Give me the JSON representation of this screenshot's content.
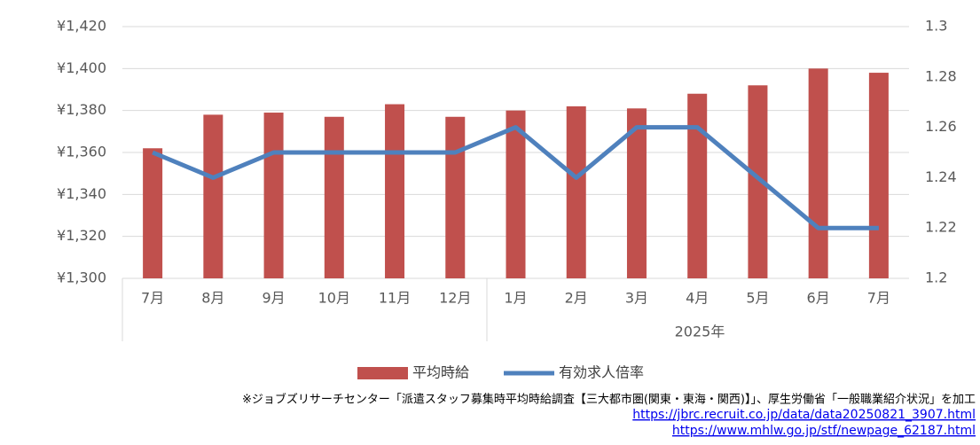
{
  "chart_data": {
    "type": "combo",
    "categories": [
      "7月",
      "8月",
      "9月",
      "10月",
      "11月",
      "12月",
      "1月",
      "2月",
      "3月",
      "4月",
      "5月",
      "6月",
      "7月"
    ],
    "group_label": "2025年",
    "series": [
      {
        "name": "平均時給",
        "type": "bar",
        "color": "#c0504d",
        "values": [
          1362,
          1378,
          1379,
          1377,
          1383,
          1377,
          1380,
          1382,
          1381,
          1388,
          1392,
          1400,
          1398
        ]
      },
      {
        "name": "有効求人倍率",
        "type": "line",
        "axis": "y2",
        "color": "#4f81bd",
        "values": [
          1.25,
          1.24,
          1.25,
          1.25,
          1.25,
          1.25,
          1.26,
          1.24,
          1.26,
          1.26,
          1.24,
          1.22,
          1.22
        ]
      }
    ],
    "ylim": [
      1300,
      1420
    ],
    "yticks": [
      {
        "value": 1300,
        "label": "¥1,300"
      },
      {
        "value": 1320,
        "label": "¥1,320"
      },
      {
        "value": 1340,
        "label": "¥1,340"
      },
      {
        "value": 1360,
        "label": "¥1,360"
      },
      {
        "value": 1380,
        "label": "¥1,380"
      },
      {
        "value": 1400,
        "label": "¥1,400"
      },
      {
        "value": 1420,
        "label": "¥1,420"
      }
    ],
    "y2lim": [
      1.2,
      1.3
    ],
    "y2ticks": [
      1.2,
      1.22,
      1.24,
      1.26,
      1.28,
      1.3
    ],
    "grid": true,
    "legend": "bottom",
    "notes": [
      "※ジョブズリサーチセンター「派遣スタッフ募集時平均時給調査【三大都市圏(関東・東海・関西)】」、厚生労働省「一般職業紹介状況」を加工"
    ],
    "links": [
      "https://jbrc.recruit.co.jp/data/data20250821_3907.html",
      "https://www.mhlw.go.jp/stf/newpage_62187.html"
    ]
  }
}
